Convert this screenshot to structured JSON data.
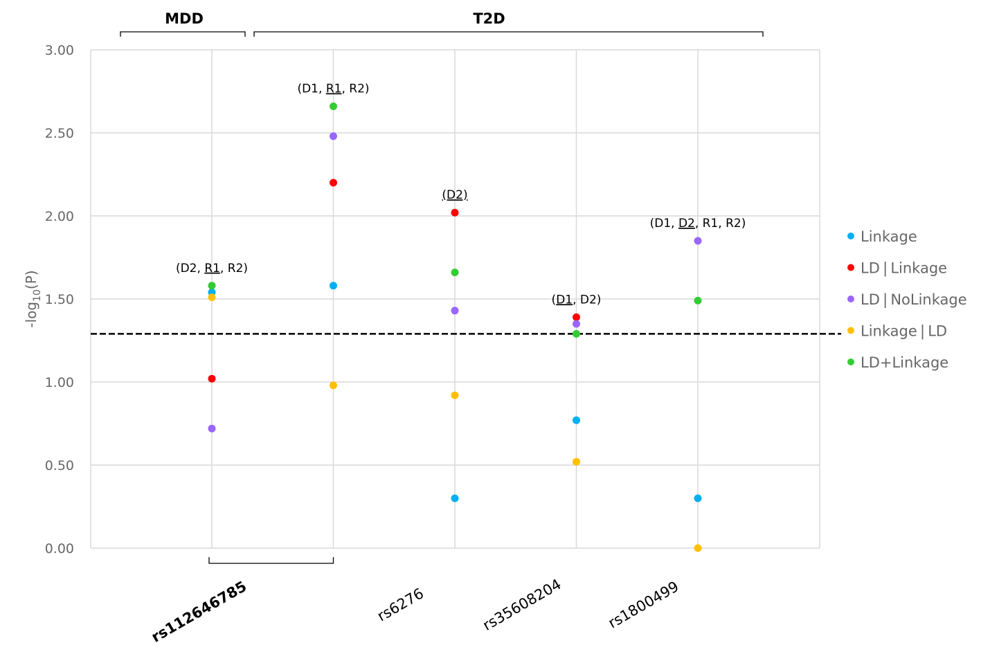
{
  "chart_data": {
    "type": "scatter",
    "title": "",
    "xlabel": "",
    "ylabel": "-log10(P)",
    "ylabel_parts": {
      "base": "-log",
      "sub": "10",
      "suffix": "(P)"
    },
    "ylim": [
      0,
      3
    ],
    "yticks": [
      "0.00",
      "0.50",
      "1.00",
      "1.50",
      "2.00",
      "2.50",
      "3.00"
    ],
    "ytick_values": [
      0,
      0.5,
      1,
      1.5,
      2,
      2.5,
      3
    ],
    "grid": true,
    "threshold": {
      "value": 1.29,
      "style": "dashed"
    },
    "categories": [
      "rs112646785",
      "",
      "rs6276",
      "rs35608204",
      "rs1800499"
    ],
    "category_bold": [
      true,
      false,
      false,
      false,
      false
    ],
    "groups": [
      {
        "label": "MDD",
        "from": 0,
        "to": 0.5
      },
      {
        "label": "T2D",
        "from": 0.5,
        "to": 4.5
      }
    ],
    "bottom_bracket": {
      "from": 0,
      "to": 1
    },
    "annotations": [
      {
        "category": 0,
        "y": 1.58,
        "parts": [
          {
            "t": "(D2, ",
            "u": false
          },
          {
            "t": "R1",
            "u": true
          },
          {
            "t": ", R2)",
            "u": false
          }
        ]
      },
      {
        "category": 1,
        "y": 2.66,
        "parts": [
          {
            "t": "(D1, ",
            "u": false
          },
          {
            "t": "R1",
            "u": true
          },
          {
            "t": ", R2)",
            "u": false
          }
        ]
      },
      {
        "category": 2,
        "y": 2.02,
        "parts": [
          {
            "t": "(D2)",
            "u": true
          }
        ]
      },
      {
        "category": 3,
        "y": 1.39,
        "parts": [
          {
            "t": "(",
            "u": false
          },
          {
            "t": "D1",
            "u": true
          },
          {
            "t": ", D2)",
            "u": false
          }
        ]
      },
      {
        "category": 4,
        "y": 1.85,
        "parts": [
          {
            "t": "(D1, ",
            "u": false
          },
          {
            "t": "D2",
            "u": true
          },
          {
            "t": ", R1, R2)",
            "u": false
          }
        ]
      }
    ],
    "series": [
      {
        "name": "Linkage",
        "color": "#00b0f0",
        "values": [
          1.54,
          1.58,
          0.3,
          0.77,
          0.3
        ]
      },
      {
        "name": "LD|Linkage",
        "color": "#ff0000",
        "values": [
          1.02,
          2.2,
          2.02,
          1.39,
          null
        ]
      },
      {
        "name": "LD|NoLinkage",
        "color": "#9966ff",
        "values": [
          0.72,
          2.48,
          1.43,
          1.35,
          1.85
        ]
      },
      {
        "name": "Linkage|LD",
        "color": "#ffc000",
        "values": [
          1.51,
          0.98,
          0.92,
          0.52,
          0.0
        ]
      },
      {
        "name": "LD+Linkage",
        "color": "#33cc33",
        "values": [
          1.58,
          2.66,
          1.66,
          1.29,
          1.49
        ]
      }
    ],
    "legend": {
      "position": "right"
    }
  }
}
